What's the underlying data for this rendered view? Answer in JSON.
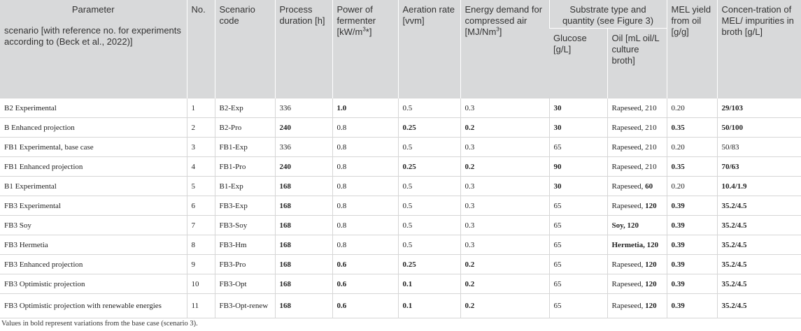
{
  "header": {
    "parameter": "Parameter",
    "scenario_desc": "scenario [with reference no. for experiments according to (Beck et al., 2022)]",
    "no": "No.",
    "code": "Scenario code",
    "duration": "Process duration [h]",
    "power_pre": "Power of fermenter [kW/m",
    "power_sup": "3",
    "power_post": "*]",
    "aeration": "Aeration rate [vvm]",
    "energy_pre": "Energy demand for compressed air [MJ/Nm",
    "energy_sup": "3",
    "energy_post": "]",
    "substrate": "Substrate type and quantity (see Figure 3)",
    "glucose": "Glucose [g/L]",
    "oil": "Oil [mL oil/L culture broth]",
    "yield": "MEL yield from oil [g/g]",
    "conc": "Concen-tration of MEL/ impurities in broth [g/L]"
  },
  "rows": [
    {
      "scenario": "B2 Experimental",
      "no": "1",
      "code": "B2-Exp",
      "duration": "336",
      "power": "1.0",
      "aeration": "0.5",
      "energy": "0.3",
      "glucose": "30",
      "oil": "Rapeseed, 210",
      "yield": "0.20",
      "conc": "29/103"
    },
    {
      "scenario": "B Enhanced projection",
      "no": "2",
      "code": "B2-Pro",
      "duration": "240",
      "power": "0.8",
      "aeration": "0.25",
      "energy": "0.2",
      "glucose": "30",
      "oil": "Rapeseed, 210",
      "yield": "0.35",
      "conc": "50/100"
    },
    {
      "scenario": "FB1 Experimental, base case",
      "no": "3",
      "code": "FB1-Exp",
      "duration": "336",
      "power": "0.8",
      "aeration": "0.5",
      "energy": "0.3",
      "glucose": "65",
      "oil": "Rapeseed, 210",
      "yield": "0.20",
      "conc": "50/83"
    },
    {
      "scenario": "FB1 Enhanced projection",
      "no": "4",
      "code": "FB1-Pro",
      "duration": "240",
      "power": "0.8",
      "aeration": "0.25",
      "energy": "0.2",
      "glucose": "90",
      "oil": "Rapeseed, 210",
      "yield": "0.35",
      "conc": "70/63"
    },
    {
      "scenario": "B1 Experimental",
      "no": "5",
      "code": "B1-Exp",
      "duration": "168",
      "power": "0.8",
      "aeration": "0.5",
      "energy": "0.3",
      "glucose": "30",
      "oil_a": "Rapeseed, ",
      "oil_b": "60",
      "yield": "0.20",
      "conc": "10.4/1.9"
    },
    {
      "scenario": "FB3 Experimental",
      "no": "6",
      "code": "FB3-Exp",
      "duration": "168",
      "power": "0.8",
      "aeration": "0.5",
      "energy": "0.3",
      "glucose": "65",
      "oil_a": "Rapeseed, ",
      "oil_b": "120",
      "yield": "0.39",
      "conc": "35.2/4.5"
    },
    {
      "scenario": "FB3 Soy",
      "no": "7",
      "code": "FB3-Soy",
      "duration": "168",
      "power": "0.8",
      "aeration": "0.5",
      "energy": "0.3",
      "glucose": "65",
      "oil": "Soy, 120",
      "yield": "0.39",
      "conc": "35.2/4.5"
    },
    {
      "scenario": "FB3 Hermetia",
      "no": "8",
      "code": "FB3-Hm",
      "duration": "168",
      "power": "0.8",
      "aeration": "0.5",
      "energy": "0.3",
      "glucose": "65",
      "oil": "Hermetia, 120",
      "yield": "0.39",
      "conc": "35.2/4.5"
    },
    {
      "scenario": "FB3 Enhanced projection",
      "no": "9",
      "code": "FB3-Pro",
      "duration": "168",
      "power": "0.6",
      "aeration": "0.25",
      "energy": "0.2",
      "glucose": "65",
      "oil_a": "Rapeseed, ",
      "oil_b": "120",
      "yield": "0.39",
      "conc": "35.2/4.5"
    },
    {
      "scenario": "FB3 Optimistic projection",
      "no": "10",
      "code": "FB3-Opt",
      "duration": "168",
      "power": "0.6",
      "aeration": "0.1",
      "energy": "0.2",
      "glucose": "65",
      "oil_a": "Rapeseed, ",
      "oil_b": "120",
      "yield": "0.39",
      "conc": "35.2/4.5"
    },
    {
      "scenario": "FB3 Optimistic projection with renewable energies",
      "no": "11",
      "code": "FB3-Opt-renew",
      "duration": "168",
      "power": "0.6",
      "aeration": "0.1",
      "energy": "0.2",
      "glucose": "65",
      "oil_a": "Rapeseed, ",
      "oil_b": "120",
      "yield": "0.39",
      "conc": "35.2/4.5"
    }
  ],
  "footnote": "Values in bold represent variations from the base case (scenario 3)."
}
